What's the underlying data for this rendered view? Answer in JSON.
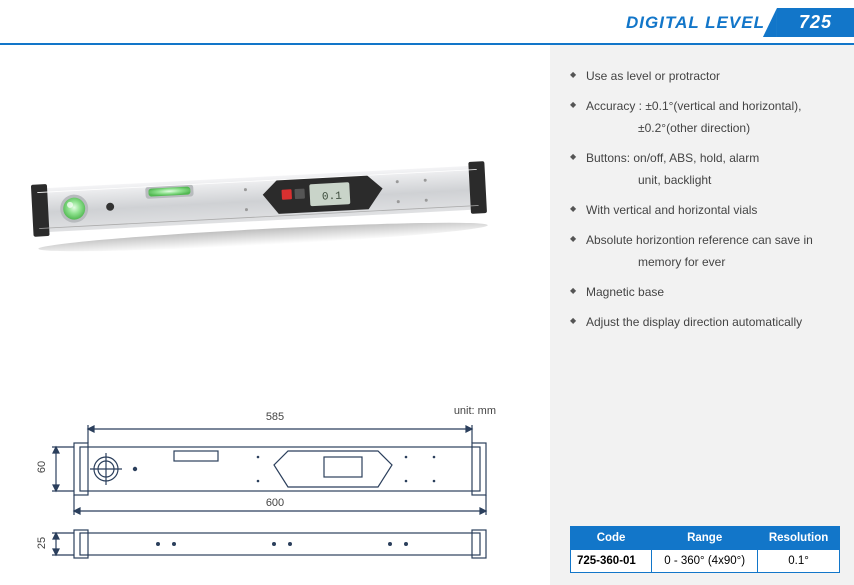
{
  "header": {
    "title": "DIGITAL LEVEL",
    "code": "725"
  },
  "features": [
    "Use as level or protractor",
    "Accuracy : ±0.1°(vertical and horizontal),",
    "±0.2°(other direction)",
    "Buttons: on/off,  ABS, hold, alarm",
    "unit, backlight",
    "With vertical and horizontal vials",
    "Absolute horizontion reference can save in",
    "memory for ever",
    "Magnetic base",
    "Adjust the display direction automatically"
  ],
  "feature_indents": [
    false,
    false,
    true,
    false,
    true,
    false,
    false,
    true,
    false,
    false
  ],
  "spec_table": {
    "headers": [
      "Code",
      "Range",
      "Resolution"
    ],
    "rows": [
      [
        "725-360-01",
        "0 - 360° (4x90°)",
        "0.1°"
      ]
    ]
  },
  "diagram": {
    "unit_label": "unit: mm",
    "dim_585": "585",
    "dim_600": "600",
    "dim_60": "60",
    "dim_25": "25"
  },
  "colors": {
    "primary": "#1276c9",
    "panel_bg": "#f2f2f2",
    "text": "#444444",
    "level_body": "#d8d9db",
    "level_endcap": "#3b3b3b",
    "bubble": "#8fe28f",
    "bubble_glow": "#c8f5c8",
    "diagram_stroke": "#2b3f5c"
  }
}
